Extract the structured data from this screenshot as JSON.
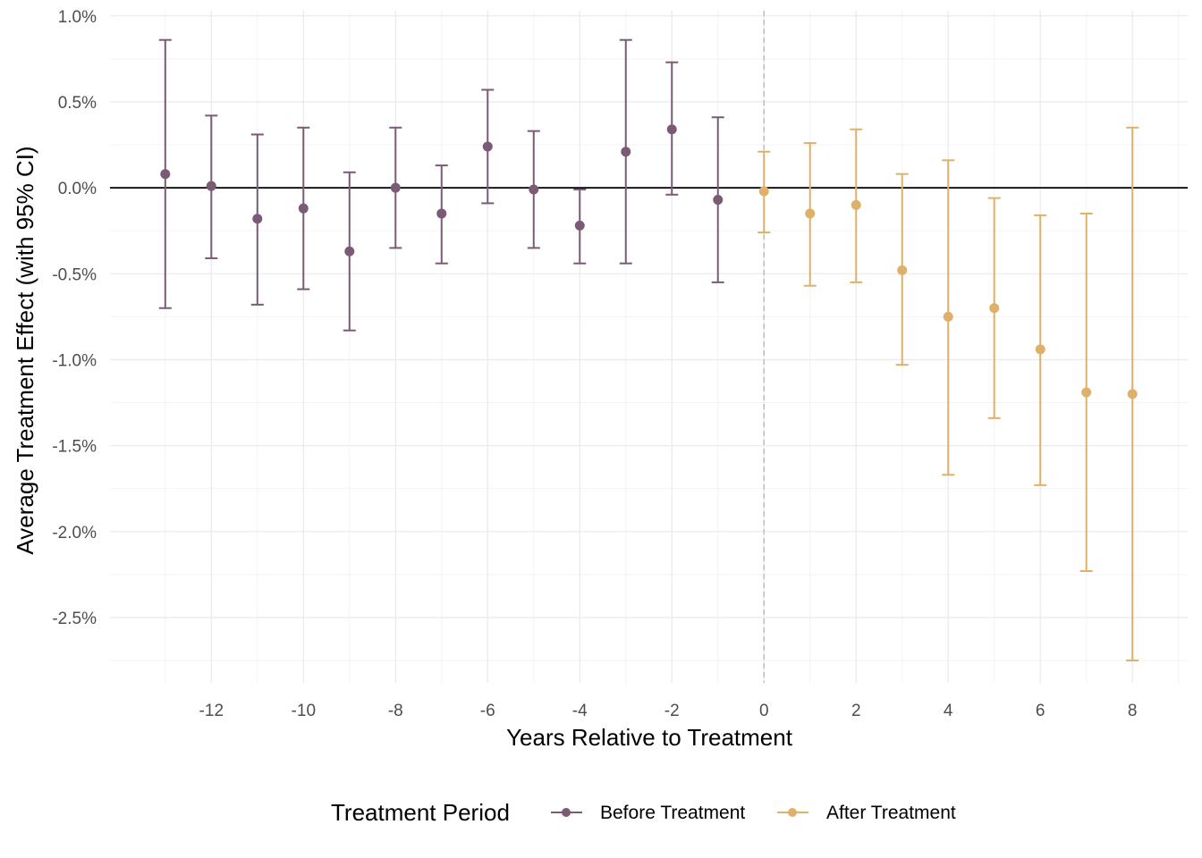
{
  "chart_data": {
    "type": "scatter",
    "subtype": "errorbar",
    "title": "",
    "xlabel": "Years Relative to Treatment",
    "ylabel": "Average Treatment Effect (with 95% CI)",
    "xlim": [
      -14.2,
      9.2
    ],
    "ylim": [
      -2.88,
      1.03
    ],
    "x_ticks": [
      -12,
      -10,
      -8,
      -6,
      -4,
      -2,
      0,
      2,
      4,
      6,
      8
    ],
    "x_tick_labels": [
      "-12",
      "-10",
      "-8",
      "-6",
      "-4",
      "-2",
      "0",
      "2",
      "4",
      "6",
      "8"
    ],
    "y_ticks": [
      1.0,
      0.5,
      0.0,
      -0.5,
      -1.0,
      -1.5,
      -2.0,
      -2.5
    ],
    "y_tick_labels": [
      "1.0%",
      "0.5%",
      "0.0%",
      "-0.5%",
      "-1.0%",
      "-1.5%",
      "-2.0%",
      "-2.5%"
    ],
    "grid": true,
    "reference_lines": [
      {
        "axis": "y",
        "value": 0,
        "style": "solid",
        "color": "#000000"
      },
      {
        "axis": "x",
        "value": 0,
        "style": "dashed",
        "color": "#bbbbbb"
      }
    ],
    "legend": {
      "title": "Treatment Period",
      "position": "bottom"
    },
    "series": [
      {
        "name": "Before Treatment",
        "color": "#7b5a75",
        "points": [
          {
            "x": -13,
            "y": 0.08,
            "lower": -0.7,
            "upper": 0.86
          },
          {
            "x": -12,
            "y": 0.01,
            "lower": -0.41,
            "upper": 0.42
          },
          {
            "x": -11,
            "y": -0.18,
            "lower": -0.68,
            "upper": 0.31
          },
          {
            "x": -10,
            "y": -0.12,
            "lower": -0.59,
            "upper": 0.35
          },
          {
            "x": -9,
            "y": -0.37,
            "lower": -0.83,
            "upper": 0.09
          },
          {
            "x": -8,
            "y": 0.0,
            "lower": -0.35,
            "upper": 0.35
          },
          {
            "x": -7,
            "y": -0.15,
            "lower": -0.44,
            "upper": 0.13
          },
          {
            "x": -6,
            "y": 0.24,
            "lower": -0.09,
            "upper": 0.57
          },
          {
            "x": -5,
            "y": -0.01,
            "lower": -0.35,
            "upper": 0.33
          },
          {
            "x": -4,
            "y": -0.22,
            "lower": -0.44,
            "upper": -0.01
          },
          {
            "x": -3,
            "y": 0.21,
            "lower": -0.44,
            "upper": 0.86
          },
          {
            "x": -2,
            "y": 0.34,
            "lower": -0.04,
            "upper": 0.73
          },
          {
            "x": -1,
            "y": -0.07,
            "lower": -0.55,
            "upper": 0.41
          }
        ]
      },
      {
        "name": "After Treatment",
        "color": "#deb06a",
        "points": [
          {
            "x": 0,
            "y": -0.02,
            "lower": -0.26,
            "upper": 0.21
          },
          {
            "x": 1,
            "y": -0.15,
            "lower": -0.57,
            "upper": 0.26
          },
          {
            "x": 2,
            "y": -0.1,
            "lower": -0.55,
            "upper": 0.34
          },
          {
            "x": 3,
            "y": -0.48,
            "lower": -1.03,
            "upper": 0.08
          },
          {
            "x": 4,
            "y": -0.75,
            "lower": -1.67,
            "upper": 0.16
          },
          {
            "x": 5,
            "y": -0.7,
            "lower": -1.34,
            "upper": -0.06
          },
          {
            "x": 6,
            "y": -0.94,
            "lower": -1.73,
            "upper": -0.16
          },
          {
            "x": 7,
            "y": -1.19,
            "lower": -2.23,
            "upper": -0.15
          },
          {
            "x": 8,
            "y": -1.2,
            "lower": -2.75,
            "upper": 0.35
          }
        ]
      }
    ]
  }
}
